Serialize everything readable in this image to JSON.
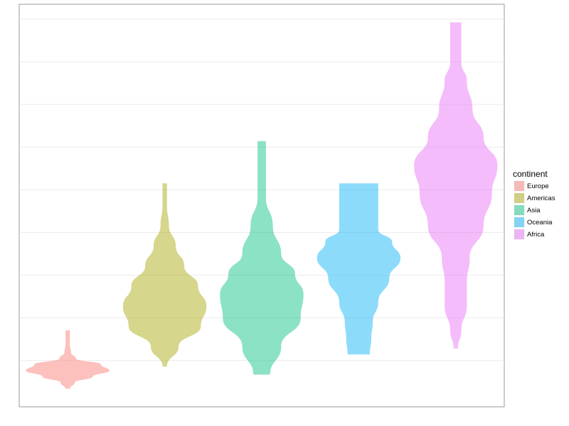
{
  "chart_data": {
    "type": "violin",
    "title": "",
    "xlabel": "",
    "ylabel": "",
    "grid": true,
    "legend": {
      "title": "continent",
      "placement": "right",
      "entries": [
        {
          "label": "Europe",
          "color": "#F8766D"
        },
        {
          "label": "Americas",
          "color": "#A3A500"
        },
        {
          "label": "Asia",
          "color": "#00BF7D"
        },
        {
          "label": "Oceania",
          "color": "#00B0F6"
        },
        {
          "label": "Africa",
          "color": "#E76BF3"
        }
      ]
    },
    "ylim": [
      0,
      1
    ],
    "series": [
      {
        "name": "Europe",
        "color": "#F8766D",
        "density": [
          [
            0.045,
            0.008
          ],
          [
            0.06,
            0.025
          ],
          [
            0.075,
            0.09
          ],
          [
            0.09,
            0.15
          ],
          [
            0.105,
            0.12
          ],
          [
            0.12,
            0.03
          ],
          [
            0.135,
            0.012
          ],
          [
            0.155,
            0.008
          ],
          [
            0.19,
            0.008
          ]
        ]
      },
      {
        "name": "Americas",
        "color": "#A3A500",
        "density": [
          [
            0.1,
            0.008
          ],
          [
            0.15,
            0.05
          ],
          [
            0.2,
            0.13
          ],
          [
            0.25,
            0.15
          ],
          [
            0.3,
            0.12
          ],
          [
            0.35,
            0.07
          ],
          [
            0.4,
            0.04
          ],
          [
            0.45,
            0.015
          ],
          [
            0.5,
            0.008
          ],
          [
            0.555,
            0.008
          ]
        ]
      },
      {
        "name": "Asia",
        "color": "#00BF7D",
        "density": [
          [
            0.08,
            0.03
          ],
          [
            0.15,
            0.07
          ],
          [
            0.22,
            0.14
          ],
          [
            0.28,
            0.15
          ],
          [
            0.33,
            0.12
          ],
          [
            0.38,
            0.07
          ],
          [
            0.45,
            0.04
          ],
          [
            0.52,
            0.015
          ],
          [
            0.585,
            0.015
          ],
          [
            0.66,
            0.015
          ]
        ]
      },
      {
        "name": "Oceania",
        "color": "#00B0F6",
        "density": [
          [
            0.13,
            0.04
          ],
          [
            0.17,
            0.045
          ],
          [
            0.21,
            0.05
          ],
          [
            0.26,
            0.07
          ],
          [
            0.32,
            0.11
          ],
          [
            0.37,
            0.15
          ],
          [
            0.41,
            0.12
          ],
          [
            0.44,
            0.07
          ],
          [
            0.555,
            0.07
          ]
        ]
      },
      {
        "name": "Africa",
        "color": "#E76BF3",
        "density": [
          [
            0.145,
            0.008
          ],
          [
            0.19,
            0.02
          ],
          [
            0.25,
            0.04
          ],
          [
            0.31,
            0.04
          ],
          [
            0.37,
            0.05
          ],
          [
            0.45,
            0.1
          ],
          [
            0.53,
            0.13
          ],
          [
            0.6,
            0.15
          ],
          [
            0.67,
            0.1
          ],
          [
            0.74,
            0.06
          ],
          [
            0.81,
            0.04
          ],
          [
            0.855,
            0.02
          ],
          [
            0.955,
            0.02
          ]
        ]
      }
    ]
  }
}
